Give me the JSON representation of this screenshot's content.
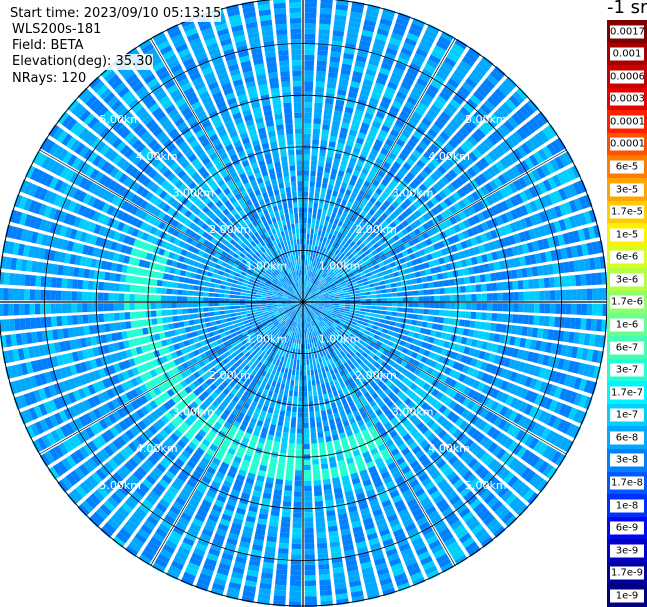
{
  "header": {
    "start_time": "Start time: 2023/09/10 05:13:15",
    "instrument": "WLS200s-181",
    "field": "Field: BETA",
    "elevation": "Elevation(deg): 35.30",
    "nrays": "NRays: 120"
  },
  "colorbar": {
    "title": "-1 sr",
    "levels": [
      {
        "label": "0.0017",
        "color": "#7f0000"
      },
      {
        "label": "0.001",
        "color": "#a80000"
      },
      {
        "label": "0.0006",
        "color": "#c80000"
      },
      {
        "label": "0.0003",
        "color": "#e80000"
      },
      {
        "label": "0.00017",
        "color": "#ff2000"
      },
      {
        "label": "0.0001",
        "color": "#ff5000"
      },
      {
        "label": "6e-5",
        "color": "#ff7c00"
      },
      {
        "label": "3e-5",
        "color": "#ffa400"
      },
      {
        "label": "1.7e-5",
        "color": "#ffcc00"
      },
      {
        "label": "1e-5",
        "color": "#fff000"
      },
      {
        "label": "6e-6",
        "color": "#d8ff1e"
      },
      {
        "label": "3e-6",
        "color": "#b2ff44"
      },
      {
        "label": "1.7e-6",
        "color": "#8cff6a"
      },
      {
        "label": "1e-6",
        "color": "#66ff90"
      },
      {
        "label": "6e-7",
        "color": "#44ffb2"
      },
      {
        "label": "3e-7",
        "color": "#22ffd4"
      },
      {
        "label": "1.7e-7",
        "color": "#00f4ff"
      },
      {
        "label": "1e-7",
        "color": "#00d0ff"
      },
      {
        "label": "6e-8",
        "color": "#00a8ff"
      },
      {
        "label": "3e-8",
        "color": "#0080ff"
      },
      {
        "label": "1.7e-8",
        "color": "#0058ff"
      },
      {
        "label": "1e-8",
        "color": "#0030ff"
      },
      {
        "label": "6e-9",
        "color": "#0008f0"
      },
      {
        "label": "3e-9",
        "color": "#0000c8"
      },
      {
        "label": "1.7e-9",
        "color": "#0000a0"
      },
      {
        "label": "1e-9",
        "color": "#000080"
      }
    ]
  },
  "chart_data": {
    "type": "heatmap",
    "projection": "polar PPI",
    "field": "BETA",
    "elevation_deg": 35.3,
    "nrays": 120,
    "range_rings_km": [
      1,
      2,
      3,
      4,
      5
    ],
    "ring_labels": [
      "1.00km",
      "2.00km",
      "3.00km",
      "4.00km",
      "5.00km"
    ],
    "max_range_km": 5.9,
    "spoke_azimuths_deg": [
      0,
      30,
      60,
      90,
      120,
      150,
      180,
      210,
      240,
      270,
      300,
      330
    ],
    "dominant_values": [
      "3e-8",
      "6e-8",
      "1e-7"
    ],
    "aerosol_ring_value": "3e-7",
    "aerosol_ring_range_km": 3.1,
    "aerosol_ring_sector_deg": [
      150,
      290
    ],
    "grid": true
  }
}
